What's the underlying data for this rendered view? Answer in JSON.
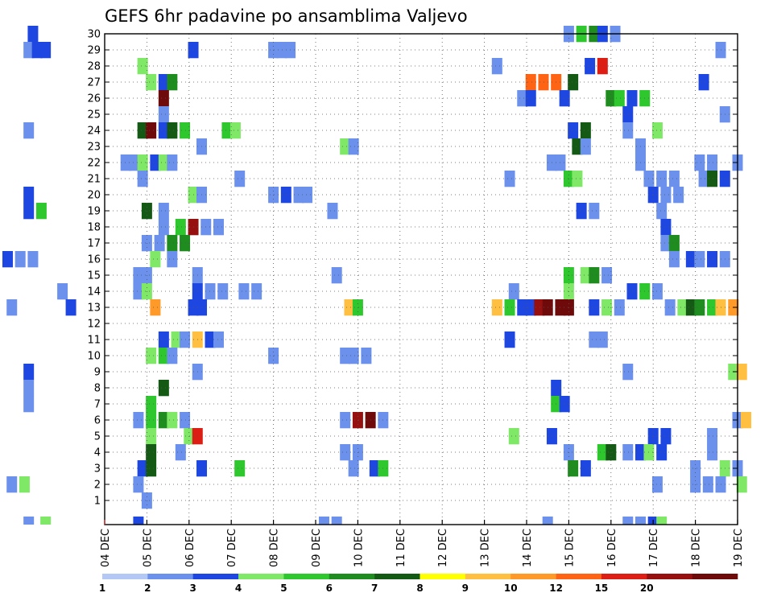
{
  "chart_data": {
    "type": "heatmap",
    "title": "GEFS 6hr padavine po ansamblima Valjevo",
    "x_labels": [
      "04 DEC",
      "05 DEC",
      "06 DEC",
      "07 DEC",
      "08 DEC",
      "09 DEC",
      "10 DEC",
      "11 DEC",
      "12 DEC",
      "13 DEC",
      "14 DEC",
      "15 DEC",
      "16 DEC",
      "17 DEC",
      "18 DEC",
      "19 DEC"
    ],
    "y_labels": [
      "1",
      "2",
      "3",
      "4",
      "5",
      "6",
      "7",
      "8",
      "9",
      "10",
      "11",
      "12",
      "13",
      "14",
      "15",
      "16",
      "17",
      "18",
      "19",
      "20",
      "21",
      "22",
      "23",
      "24",
      "25",
      "26",
      "27",
      "28",
      "29",
      "30"
    ],
    "grid": true,
    "colorbar": {
      "levels": [
        "1",
        "2",
        "3",
        "4",
        "5",
        "6",
        "7",
        "8",
        "9",
        "10",
        "12",
        "15",
        "20"
      ],
      "colors": [
        "#b4c8f5",
        "#6b91ec",
        "#1e46e0",
        "#7fe867",
        "#2ec82e",
        "#1e8c1e",
        "#145a14",
        "#ffff00",
        "#ffbf40",
        "#ff9a28",
        "#ff6414",
        "#dc1e14",
        "#961010",
        "#6e0a0a"
      ]
    },
    "cells": [
      [
        2.3,
        30,
        2
      ],
      [
        2.2,
        29,
        1
      ],
      [
        2.4,
        29,
        2
      ],
      [
        2.6,
        29,
        2
      ],
      [
        6.1,
        29,
        2
      ],
      [
        8.0,
        29,
        1
      ],
      [
        8.2,
        29,
        1
      ],
      [
        8.4,
        29,
        1
      ],
      [
        15.0,
        30,
        1
      ],
      [
        15.3,
        30,
        4
      ],
      [
        15.6,
        30,
        5
      ],
      [
        15.8,
        30,
        2
      ],
      [
        16.1,
        30,
        1
      ],
      [
        18.6,
        29,
        1
      ],
      [
        4.9,
        28,
        3
      ],
      [
        13.3,
        28,
        1
      ],
      [
        15.5,
        28,
        2
      ],
      [
        15.8,
        28,
        11
      ],
      [
        5.1,
        27,
        3
      ],
      [
        5.4,
        27,
        2
      ],
      [
        5.6,
        27,
        5
      ],
      [
        14.1,
        27,
        10
      ],
      [
        14.4,
        27,
        10
      ],
      [
        14.7,
        27,
        10
      ],
      [
        15.1,
        27,
        6
      ],
      [
        18.2,
        27,
        2
      ],
      [
        5.4,
        26,
        13
      ],
      [
        13.9,
        26,
        1
      ],
      [
        14.1,
        26,
        2
      ],
      [
        14.9,
        26,
        2
      ],
      [
        16.0,
        26,
        5
      ],
      [
        16.2,
        26,
        4
      ],
      [
        16.5,
        26,
        2
      ],
      [
        16.8,
        26,
        4
      ],
      [
        16.4,
        25,
        2
      ],
      [
        5.4,
        25,
        1
      ],
      [
        18.7,
        25,
        1
      ],
      [
        2.2,
        24,
        1
      ],
      [
        4.9,
        24,
        6
      ],
      [
        5.1,
        24,
        13
      ],
      [
        5.4,
        24,
        2
      ],
      [
        5.6,
        24,
        6
      ],
      [
        5.9,
        24,
        4
      ],
      [
        6.9,
        24,
        4
      ],
      [
        7.1,
        24,
        3
      ],
      [
        15.1,
        24,
        2
      ],
      [
        15.4,
        24,
        6
      ],
      [
        16.4,
        24,
        1
      ],
      [
        17.1,
        24,
        3
      ],
      [
        6.3,
        23,
        1
      ],
      [
        9.7,
        23,
        3
      ],
      [
        9.9,
        23,
        1
      ],
      [
        15.2,
        23,
        6
      ],
      [
        15.4,
        23,
        1
      ],
      [
        16.7,
        23,
        1
      ],
      [
        4.5,
        22,
        1
      ],
      [
        4.7,
        22,
        1
      ],
      [
        4.9,
        22,
        3
      ],
      [
        5.2,
        22,
        2
      ],
      [
        5.4,
        22,
        3
      ],
      [
        5.6,
        22,
        1
      ],
      [
        14.6,
        22,
        1
      ],
      [
        14.8,
        22,
        1
      ],
      [
        16.7,
        22,
        1
      ],
      [
        18.1,
        22,
        1
      ],
      [
        18.4,
        22,
        1
      ],
      [
        19.0,
        22,
        1
      ],
      [
        4.9,
        21,
        1
      ],
      [
        7.2,
        21,
        1
      ],
      [
        13.6,
        21,
        1
      ],
      [
        15.0,
        21,
        4
      ],
      [
        15.2,
        21,
        3
      ],
      [
        16.9,
        21,
        1
      ],
      [
        17.2,
        21,
        1
      ],
      [
        17.5,
        21,
        1
      ],
      [
        18.2,
        21,
        1
      ],
      [
        18.4,
        21,
        6
      ],
      [
        18.7,
        21,
        2
      ],
      [
        2.2,
        20,
        2
      ],
      [
        6.1,
        20,
        3
      ],
      [
        6.3,
        20,
        1
      ],
      [
        8.0,
        20,
        1
      ],
      [
        8.3,
        20,
        2
      ],
      [
        8.6,
        20,
        1
      ],
      [
        8.8,
        20,
        1
      ],
      [
        17.0,
        20,
        2
      ],
      [
        17.3,
        20,
        1
      ],
      [
        17.6,
        20,
        1
      ],
      [
        2.2,
        19,
        2
      ],
      [
        2.5,
        19,
        4
      ],
      [
        5.0,
        19,
        6
      ],
      [
        5.4,
        19,
        1
      ],
      [
        9.4,
        19,
        1
      ],
      [
        15.3,
        19,
        2
      ],
      [
        15.6,
        19,
        1
      ],
      [
        17.2,
        19,
        1
      ],
      [
        5.4,
        18,
        1
      ],
      [
        5.8,
        18,
        4
      ],
      [
        6.1,
        18,
        12
      ],
      [
        6.4,
        18,
        1
      ],
      [
        6.7,
        18,
        1
      ],
      [
        17.3,
        18,
        2
      ],
      [
        5.0,
        17,
        1
      ],
      [
        5.3,
        17,
        1
      ],
      [
        5.6,
        17,
        5
      ],
      [
        5.9,
        17,
        5
      ],
      [
        17.3,
        17,
        1
      ],
      [
        17.5,
        17,
        5
      ],
      [
        1.7,
        16,
        2
      ],
      [
        2.0,
        16,
        1
      ],
      [
        2.3,
        16,
        1
      ],
      [
        5.2,
        16,
        3
      ],
      [
        5.6,
        16,
        1
      ],
      [
        17.5,
        16,
        1
      ],
      [
        17.9,
        16,
        2
      ],
      [
        18.1,
        16,
        1
      ],
      [
        18.4,
        16,
        2
      ],
      [
        18.7,
        16,
        1
      ],
      [
        4.8,
        15,
        1
      ],
      [
        5.0,
        15,
        1
      ],
      [
        6.2,
        15,
        1
      ],
      [
        9.5,
        15,
        1
      ],
      [
        15.0,
        15,
        4
      ],
      [
        15.4,
        15,
        3
      ],
      [
        15.6,
        15,
        5
      ],
      [
        15.9,
        15,
        1
      ],
      [
        3.0,
        14,
        1
      ],
      [
        4.8,
        14,
        1
      ],
      [
        5.0,
        14,
        3
      ],
      [
        6.2,
        14,
        2
      ],
      [
        6.5,
        14,
        1
      ],
      [
        6.8,
        14,
        1
      ],
      [
        7.3,
        14,
        1
      ],
      [
        7.6,
        14,
        1
      ],
      [
        13.7,
        14,
        1
      ],
      [
        15.0,
        14,
        3
      ],
      [
        16.5,
        14,
        2
      ],
      [
        16.8,
        14,
        4
      ],
      [
        17.1,
        14,
        1
      ],
      [
        1.8,
        13,
        1
      ],
      [
        3.2,
        13,
        2
      ],
      [
        5.2,
        13,
        9
      ],
      [
        6.1,
        13,
        2
      ],
      [
        6.3,
        13,
        2
      ],
      [
        9.8,
        13,
        8
      ],
      [
        10.0,
        13,
        4
      ],
      [
        13.3,
        13,
        8
      ],
      [
        13.6,
        13,
        4
      ],
      [
        13.9,
        13,
        2
      ],
      [
        14.1,
        13,
        2
      ],
      [
        14.3,
        13,
        12
      ],
      [
        14.5,
        13,
        13
      ],
      [
        14.8,
        13,
        14
      ],
      [
        15.0,
        13,
        13
      ],
      [
        15.6,
        13,
        2
      ],
      [
        15.9,
        13,
        3
      ],
      [
        16.2,
        13,
        1
      ],
      [
        17.4,
        13,
        1
      ],
      [
        17.7,
        13,
        3
      ],
      [
        17.9,
        13,
        6
      ],
      [
        18.1,
        13,
        5
      ],
      [
        18.4,
        13,
        4
      ],
      [
        18.6,
        13,
        8
      ],
      [
        18.9,
        13,
        9
      ],
      [
        5.4,
        11,
        2
      ],
      [
        5.7,
        11,
        3
      ],
      [
        5.9,
        11,
        1
      ],
      [
        6.2,
        11,
        8
      ],
      [
        6.5,
        11,
        2
      ],
      [
        6.7,
        11,
        1
      ],
      [
        13.6,
        11,
        2
      ],
      [
        15.6,
        11,
        1
      ],
      [
        15.8,
        11,
        1
      ],
      [
        5.1,
        10,
        3
      ],
      [
        5.4,
        10,
        4
      ],
      [
        5.6,
        10,
        1
      ],
      [
        8.0,
        10,
        1
      ],
      [
        9.7,
        10,
        1
      ],
      [
        9.9,
        10,
        1
      ],
      [
        10.2,
        10,
        1
      ],
      [
        2.2,
        9,
        2
      ],
      [
        6.2,
        9,
        1
      ],
      [
        16.4,
        9,
        1
      ],
      [
        18.9,
        9,
        3
      ],
      [
        19.1,
        9,
        8
      ],
      [
        2.2,
        8,
        1
      ],
      [
        5.4,
        8,
        6
      ],
      [
        14.7,
        8,
        2
      ],
      [
        2.2,
        7,
        1
      ],
      [
        5.1,
        7,
        4
      ],
      [
        14.7,
        7,
        4
      ],
      [
        14.9,
        7,
        2
      ],
      [
        4.8,
        6,
        1
      ],
      [
        5.1,
        6,
        4
      ],
      [
        5.4,
        6,
        5
      ],
      [
        5.6,
        6,
        3
      ],
      [
        5.9,
        6,
        1
      ],
      [
        9.7,
        6,
        1
      ],
      [
        10.0,
        6,
        12
      ],
      [
        10.3,
        6,
        13
      ],
      [
        10.6,
        6,
        1
      ],
      [
        19.0,
        6,
        1
      ],
      [
        19.2,
        6,
        8
      ],
      [
        5.1,
        5,
        3
      ],
      [
        6.0,
        5,
        3
      ],
      [
        6.2,
        5,
        11
      ],
      [
        13.7,
        5,
        3
      ],
      [
        14.6,
        5,
        2
      ],
      [
        17.0,
        5,
        2
      ],
      [
        17.3,
        5,
        2
      ],
      [
        18.4,
        5,
        1
      ],
      [
        5.1,
        4,
        6
      ],
      [
        5.8,
        4,
        1
      ],
      [
        9.7,
        4,
        1
      ],
      [
        10.0,
        4,
        1
      ],
      [
        15.0,
        4,
        1
      ],
      [
        15.8,
        4,
        4
      ],
      [
        16.0,
        4,
        6
      ],
      [
        16.4,
        4,
        1
      ],
      [
        16.7,
        4,
        2
      ],
      [
        16.9,
        4,
        3
      ],
      [
        17.2,
        4,
        2
      ],
      [
        18.4,
        4,
        1
      ],
      [
        4.9,
        3,
        2
      ],
      [
        5.1,
        3,
        6
      ],
      [
        6.3,
        3,
        2
      ],
      [
        7.2,
        3,
        4
      ],
      [
        9.9,
        3,
        1
      ],
      [
        10.4,
        3,
        2
      ],
      [
        10.6,
        3,
        4
      ],
      [
        15.1,
        3,
        5
      ],
      [
        15.4,
        3,
        2
      ],
      [
        18.0,
        3,
        1
      ],
      [
        18.7,
        3,
        3
      ],
      [
        19.0,
        3,
        1
      ],
      [
        1.8,
        2,
        1
      ],
      [
        2.1,
        2,
        3
      ],
      [
        4.8,
        2,
        1
      ],
      [
        17.1,
        2,
        1
      ],
      [
        18.0,
        2,
        1
      ],
      [
        18.3,
        2,
        1
      ],
      [
        18.6,
        2,
        1
      ],
      [
        19.1,
        2,
        3
      ],
      [
        5.0,
        1,
        1
      ]
    ],
    "bottom_row": [
      [
        2.2,
        1
      ],
      [
        2.6,
        3
      ],
      [
        4.8,
        2
      ],
      [
        9.2,
        1
      ],
      [
        9.5,
        1
      ],
      [
        14.5,
        1
      ],
      [
        16.4,
        1
      ],
      [
        16.7,
        1
      ],
      [
        17.0,
        2
      ],
      [
        17.2,
        3
      ]
    ]
  }
}
